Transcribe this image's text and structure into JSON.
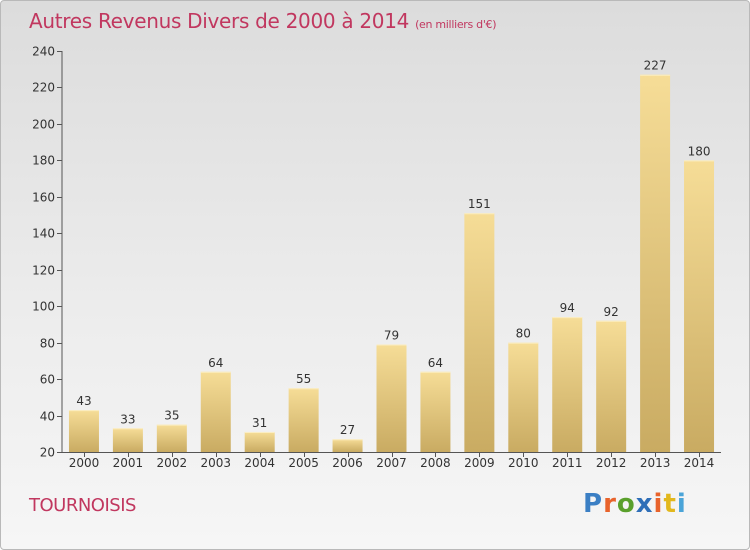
{
  "title": "Autres Revenus Divers de 2000 à 2014",
  "subtitle": "(en milliers d'€)",
  "place": "TOURNOISIS",
  "logo": {
    "letters": [
      "P",
      "r",
      "o",
      "x",
      "i",
      "t",
      "i"
    ],
    "colors": [
      "#3b7fc4",
      "#e8632b",
      "#5aa02c",
      "#2f6fb8",
      "#e8632b",
      "#e2b81d",
      "#4aa4d8"
    ]
  },
  "chart_data": {
    "type": "bar",
    "title": "Autres Revenus Divers de 2000 à 2014",
    "categories": [
      "2000",
      "2001",
      "2002",
      "2003",
      "2004",
      "2005",
      "2006",
      "2007",
      "2008",
      "2009",
      "2010",
      "2011",
      "2012",
      "2013",
      "2014"
    ],
    "values": [
      43,
      33,
      35,
      64,
      31,
      55,
      27,
      79,
      64,
      151,
      80,
      94,
      92,
      227,
      180
    ],
    "ylim": [
      20,
      240
    ],
    "yticks": [
      20,
      40,
      60,
      80,
      100,
      120,
      140,
      160,
      180,
      200,
      220,
      240
    ],
    "xlabel": "",
    "ylabel": "",
    "grid": false,
    "bar_color": "#f3d98f"
  }
}
